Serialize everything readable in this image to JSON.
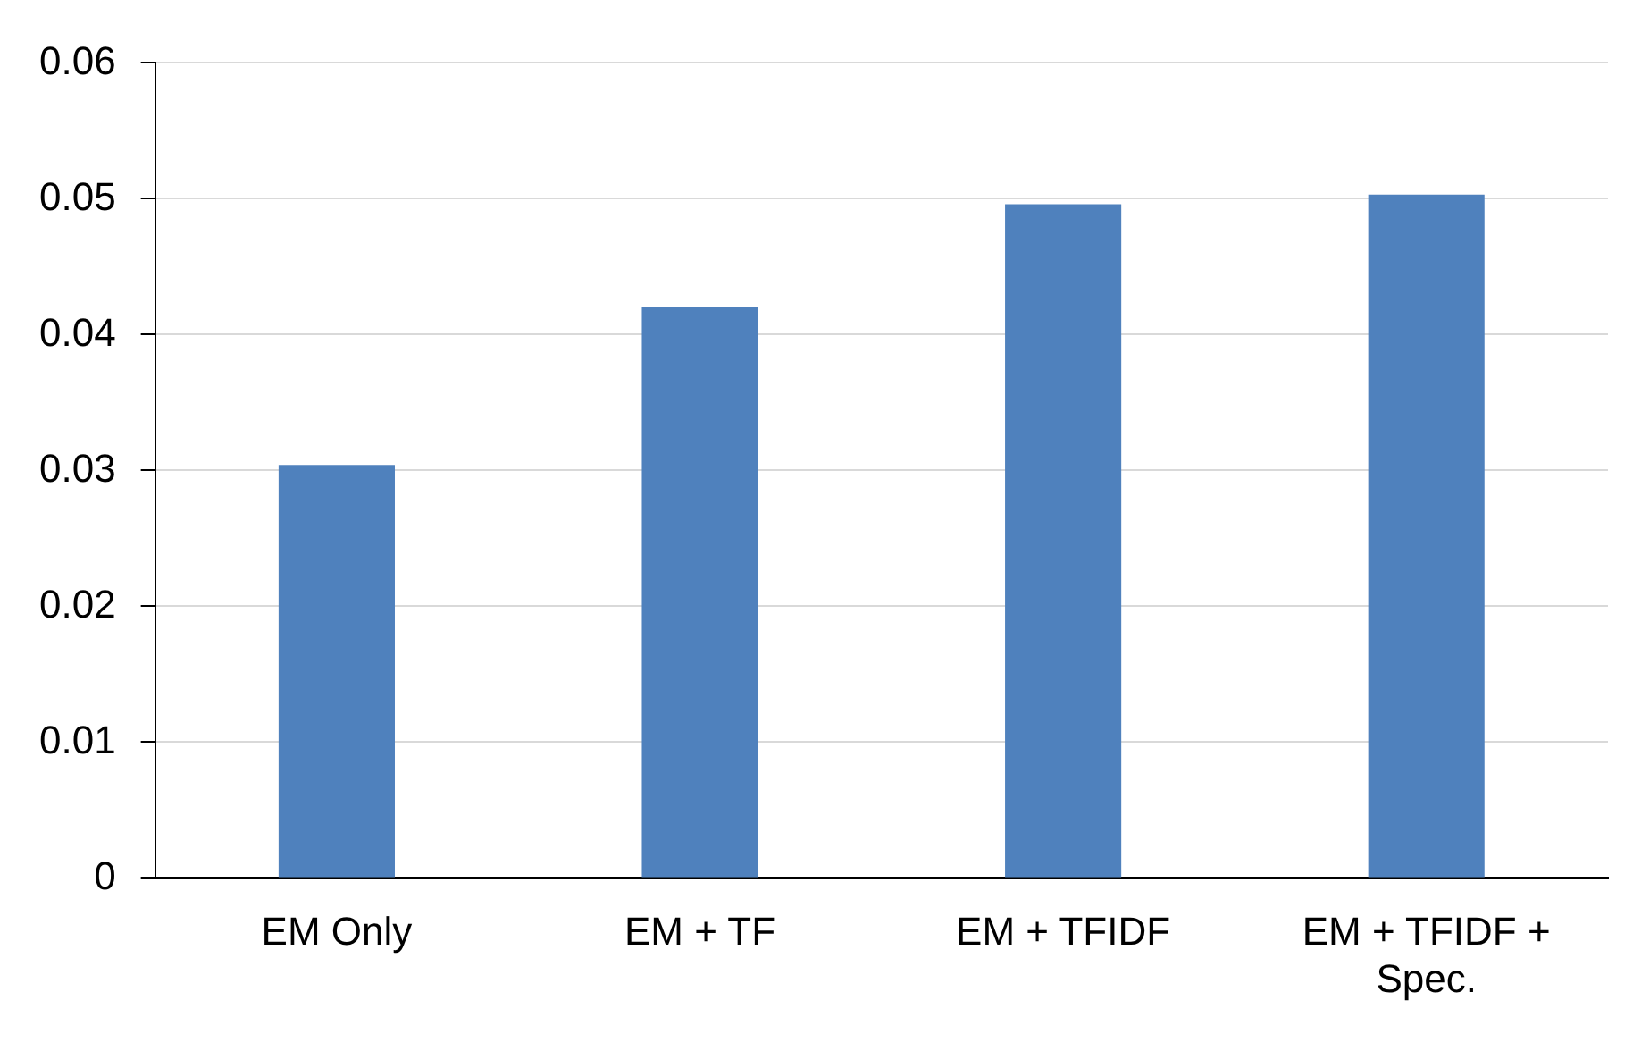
{
  "chart_data": {
    "type": "bar",
    "categories": [
      "EM Only",
      "EM + TF",
      "EM + TFIDF",
      "EM + TFIDF + Spec."
    ],
    "values": [
      0.0304,
      0.042,
      0.0496,
      0.0503
    ],
    "color": "#4f81bd",
    "ylim": [
      0,
      0.06
    ],
    "yticks": [
      0,
      0.01,
      0.02,
      0.03,
      0.04,
      0.05,
      0.06
    ],
    "grid": "y",
    "legend": false
  }
}
